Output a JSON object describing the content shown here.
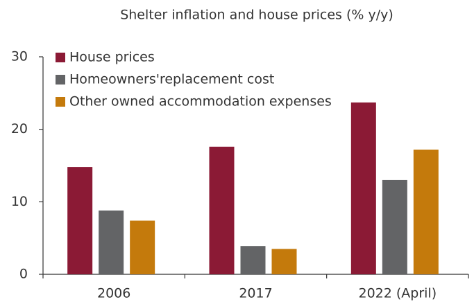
{
  "chart_data": {
    "type": "bar",
    "title": "Shelter inflation and house prices (% y/y)",
    "categories": [
      "2006",
      "2017",
      "2022 (April)"
    ],
    "series": [
      {
        "name": "House prices",
        "color": "#8b1a35",
        "values": [
          14.8,
          17.6,
          23.7
        ]
      },
      {
        "name": "Homeowners'replacement cost",
        "color": "#636466",
        "values": [
          8.8,
          3.9,
          13.0
        ]
      },
      {
        "name": "Other owned accommodation expenses",
        "color": "#c47a0c",
        "values": [
          7.4,
          3.5,
          17.2
        ]
      }
    ],
    "ylim": [
      0,
      30
    ],
    "yticks": [
      0,
      10,
      20,
      30
    ],
    "grid": false,
    "legend": "top-left"
  }
}
